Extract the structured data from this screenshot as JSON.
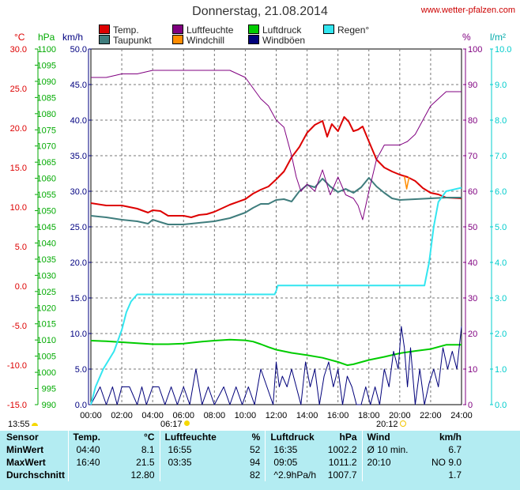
{
  "header": {
    "title": "Donnerstag, 21.08.2014",
    "site": "www.wetter-pfalzen.com"
  },
  "legend": [
    {
      "label": "Temp.",
      "color": "#dd0000"
    },
    {
      "label": "Taupunkt",
      "color": "#3f7d7d"
    },
    {
      "label": "Luftfeuchte",
      "color": "#800080"
    },
    {
      "label": "Windchill",
      "color": "#ff8c00"
    },
    {
      "label": "Luftdruck",
      "color": "#00cc00"
    },
    {
      "label": "Windböen",
      "color": "#00007a"
    },
    {
      "label": "Regen°",
      "color": "#33e6f0"
    }
  ],
  "units": {
    "temp": "°C",
    "pressure": "hPa",
    "wind": "km/h",
    "humidity": "%",
    "rain": "l/m²"
  },
  "sun": {
    "day_start": "13:55",
    "sunrise": "06:17",
    "sunset": "20:12"
  },
  "chart_data": {
    "type": "line",
    "title": "Donnerstag, 21.08.2014",
    "x_ticks": [
      "00:00",
      "02:00",
      "04:00",
      "06:00",
      "08:00",
      "10:00",
      "12:00",
      "14:00",
      "16:00",
      "18:00",
      "20:00",
      "22:00",
      "24:00"
    ],
    "x_range_hours": [
      0,
      24
    ],
    "grid": true,
    "axes": {
      "temp_c": {
        "range": [
          -15,
          30
        ],
        "ticks": [
          "30.0",
          "25.0",
          "20.0",
          "15.0",
          "10.0",
          "5.0",
          "0.0",
          "-5.0",
          "-10.0",
          "-15.0"
        ],
        "color": "#dd0000"
      },
      "pressure_hpa": {
        "range": [
          990,
          1100
        ],
        "ticks": [
          "1100",
          "1095",
          "1090",
          "1085",
          "1080",
          "1075",
          "1070",
          "1065",
          "1060",
          "1055",
          "1050",
          "1045",
          "1040",
          "1035",
          "1030",
          "1025",
          "1020",
          "1015",
          "1010",
          "1005",
          "1000",
          "995",
          "990"
        ],
        "color": "#00aa00"
      },
      "wind_kmh": {
        "range": [
          0,
          50
        ],
        "ticks": [
          "50.0",
          "45.0",
          "40.0",
          "35.0",
          "30.0",
          "25.0",
          "20.0",
          "15.0",
          "10.0",
          "5.0",
          "0.0"
        ],
        "color": "#000080"
      },
      "humidity_pct": {
        "range": [
          0,
          100
        ],
        "ticks": [
          "100",
          "90",
          "80",
          "70",
          "60",
          "50",
          "40",
          "30",
          "20",
          "10",
          "0"
        ],
        "color": "#800080"
      },
      "rain_lm2": {
        "range": [
          0,
          10
        ],
        "ticks": [
          "10.0",
          "9.0",
          "8.0",
          "7.0",
          "6.0",
          "5.0",
          "4.0",
          "3.0",
          "2.0",
          "1.0",
          "0.0"
        ],
        "color": "#00cccc"
      }
    },
    "series": [
      {
        "name": "Temp.",
        "axis": "temp_c",
        "color": "#dd0000",
        "x": [
          0,
          1,
          2,
          3,
          3.7,
          4,
          4.5,
          5,
          6,
          6.5,
          7,
          7.5,
          8,
          9,
          10,
          10.5,
          11,
          11.5,
          12,
          12.5,
          13,
          13.5,
          14,
          14.5,
          15,
          15.3,
          15.6,
          16,
          16.4,
          16.7,
          17,
          17.3,
          17.6,
          18,
          18.5,
          19,
          19.5,
          20,
          20.5,
          21,
          21.5,
          22,
          22.5,
          23,
          24
        ],
        "y": [
          10.5,
          10.2,
          10.2,
          9.8,
          9.3,
          9.6,
          9.5,
          8.9,
          8.9,
          8.7,
          9.0,
          9.1,
          9.4,
          10.3,
          11.0,
          11.7,
          12.2,
          12.6,
          13.5,
          14.5,
          16.3,
          17.6,
          19.4,
          20.4,
          20.9,
          18.9,
          20.5,
          19.6,
          21.4,
          20.8,
          19.6,
          19.8,
          20.2,
          18.3,
          16.0,
          15.0,
          14.5,
          14.1,
          13.8,
          13.3,
          12.4,
          11.8,
          11.6,
          11.2,
          11.1
        ]
      },
      {
        "name": "Taupunkt",
        "axis": "temp_c",
        "color": "#3f7d7d",
        "x": [
          0,
          1,
          2,
          3,
          3.7,
          4,
          4.5,
          5,
          6,
          7,
          8,
          9,
          10,
          10.5,
          11,
          11.5,
          12,
          12.5,
          13,
          13.5,
          14,
          14.5,
          15,
          15.5,
          16,
          16.5,
          17,
          17.5,
          18,
          18.5,
          19,
          19.5,
          20,
          21,
          22,
          23,
          24
        ],
        "y": [
          8.9,
          8.7,
          8.4,
          8.2,
          7.9,
          8.4,
          8.1,
          7.8,
          7.8,
          8.0,
          8.2,
          8.6,
          9.3,
          9.9,
          10.4,
          10.4,
          10.9,
          11.0,
          10.7,
          12.0,
          12.8,
          12.5,
          13.6,
          12.6,
          11.9,
          12.3,
          11.8,
          12.5,
          13.7,
          12.6,
          11.8,
          11.1,
          10.9,
          11.0,
          11.1,
          11.2,
          11.2
        ]
      },
      {
        "name": "Luftfeuchte",
        "axis": "humidity_pct",
        "color": "#800080",
        "x": [
          0,
          1,
          2,
          3,
          4,
          5,
          6,
          7,
          8,
          9,
          10,
          10.5,
          11,
          11.5,
          12,
          12.5,
          13,
          13.3,
          13.6,
          14,
          14.5,
          15,
          15.5,
          16,
          16.5,
          17,
          17.3,
          17.6,
          18,
          18.5,
          19,
          19.5,
          20,
          20.5,
          21,
          21.5,
          22,
          22.5,
          23,
          23.5,
          24
        ],
        "y": [
          92,
          92,
          93,
          93,
          94,
          94,
          94,
          94,
          94,
          94,
          92,
          89,
          86,
          84,
          80,
          78,
          70,
          64,
          60,
          62,
          60,
          66,
          59,
          64,
          59,
          58,
          56,
          52,
          60,
          69,
          73,
          73,
          73,
          74,
          76,
          80,
          84,
          86,
          88,
          88,
          88
        ]
      },
      {
        "name": "Windchill",
        "axis": "temp_c",
        "color": "#ff8c00",
        "x": [
          20.3,
          20.45,
          20.6
        ],
        "y": [
          13.9,
          12.3,
          13.8
        ]
      },
      {
        "name": "Luftdruck",
        "axis": "pressure_hpa",
        "color": "#00cc00",
        "x": [
          0,
          1,
          2,
          3,
          4,
          5,
          6,
          7,
          8,
          9,
          10,
          10.5,
          11,
          11.5,
          12,
          13,
          14,
          15,
          16,
          16.6,
          17,
          18,
          19,
          20,
          21,
          22,
          23,
          24
        ],
        "y": [
          1009.8,
          1009.6,
          1009.3,
          1009.0,
          1008.7,
          1008.7,
          1008.9,
          1009.4,
          1009.8,
          1010.1,
          1009.9,
          1009.5,
          1008.7,
          1007.8,
          1007.0,
          1006.0,
          1005.3,
          1004.5,
          1003.2,
          1002.2,
          1002.5,
          1003.8,
          1004.8,
          1005.9,
          1006.6,
          1007.2,
          1008.5,
          1008.5
        ]
      },
      {
        "name": "Windböen",
        "axis": "wind_kmh",
        "color": "#00007a",
        "x": [
          0,
          0.6,
          1,
          1.4,
          1.7,
          2,
          2.5,
          3,
          3.3,
          3.6,
          4,
          4.4,
          4.8,
          5.2,
          5.6,
          6,
          6.4,
          6.8,
          7.2,
          7.6,
          8,
          8.6,
          9,
          9.4,
          9.8,
          10.2,
          10.6,
          11,
          11.4,
          11.8,
          12,
          12.2,
          12.4,
          12.7,
          13,
          13.3,
          13.6,
          13.9,
          14.2,
          14.5,
          14.8,
          15.1,
          15.4,
          15.7,
          16,
          16.3,
          16.6,
          16.9,
          17.2,
          17.5,
          17.8,
          18.1,
          18.4,
          18.7,
          19,
          19.3,
          19.6,
          19.9,
          20.1,
          20.3,
          20.5,
          20.7,
          21,
          21.3,
          21.6,
          21.9,
          22.2,
          22.5,
          22.8,
          23.1,
          23.4,
          23.7,
          24
        ],
        "y": [
          0,
          2.5,
          0,
          2.5,
          0,
          2.5,
          2.5,
          0,
          2.5,
          0,
          2.5,
          2.5,
          0,
          2.5,
          0,
          2.5,
          0,
          5,
          0,
          2.5,
          0,
          2.5,
          0,
          2.5,
          0,
          2.5,
          0,
          5,
          2.5,
          0,
          6,
          2.5,
          4,
          2.5,
          5,
          2.5,
          0,
          6,
          2.5,
          5,
          0,
          4,
          6,
          2.5,
          5,
          0,
          4,
          2.5,
          0,
          0,
          2.5,
          0,
          2.5,
          0,
          5,
          2.5,
          7.5,
          5,
          11,
          8,
          2.5,
          8,
          0,
          5,
          0,
          3,
          5,
          2.5,
          8,
          5,
          7.5,
          5,
          11
        ]
      },
      {
        "name": "Regen°",
        "axis": "rain_lm2",
        "color": "#33e6f0",
        "x": [
          0,
          0.3,
          0.8,
          1.5,
          2,
          2.3,
          2.6,
          3,
          4,
          5,
          6,
          8,
          10,
          11,
          11.9,
          12,
          12.1,
          13,
          14,
          16,
          18,
          20,
          21,
          21.6,
          21.9,
          22.2,
          22.5,
          23,
          24
        ],
        "y": [
          0,
          0.5,
          1.0,
          1.5,
          2.1,
          2.6,
          2.9,
          3.1,
          3.1,
          3.1,
          3.1,
          3.1,
          3.1,
          3.1,
          3.1,
          3.2,
          3.35,
          3.35,
          3.35,
          3.35,
          3.35,
          3.35,
          3.35,
          3.35,
          4.0,
          5.0,
          5.7,
          6.0,
          6.1
        ]
      }
    ]
  },
  "stats": {
    "header": {
      "sensor": "Sensor",
      "temp": "Temp.",
      "temp_unit": "°C",
      "hum": "Luftfeuchte",
      "hum_unit": "%",
      "press": "Luftdruck",
      "press_unit": "hPa",
      "wind": "Wind",
      "wind_unit": "km/h"
    },
    "rows": [
      {
        "label": "MinWert",
        "t_time": "04:40",
        "t_val": "8.1",
        "h_time": "16:55",
        "h_val": "52",
        "p_time": "16:35",
        "p_val": "1002.2",
        "w_time": "Ø 10 min.",
        "w_val": "6.7"
      },
      {
        "label": "MaxWert",
        "t_time": "16:40",
        "t_val": "21.5",
        "h_time": "03:35",
        "h_val": "94",
        "p_time": "09:05",
        "p_val": "1011.2",
        "w_time": "20:10",
        "w_val": "NO 9.0"
      },
      {
        "label": "Durchschnitt",
        "t_time": "",
        "t_val": "12.80",
        "h_time": "",
        "h_val": "82",
        "p_time": "^2.9hPa/h",
        "p_val": "1007.7",
        "w_time": "",
        "w_val": "1.7"
      }
    ]
  }
}
